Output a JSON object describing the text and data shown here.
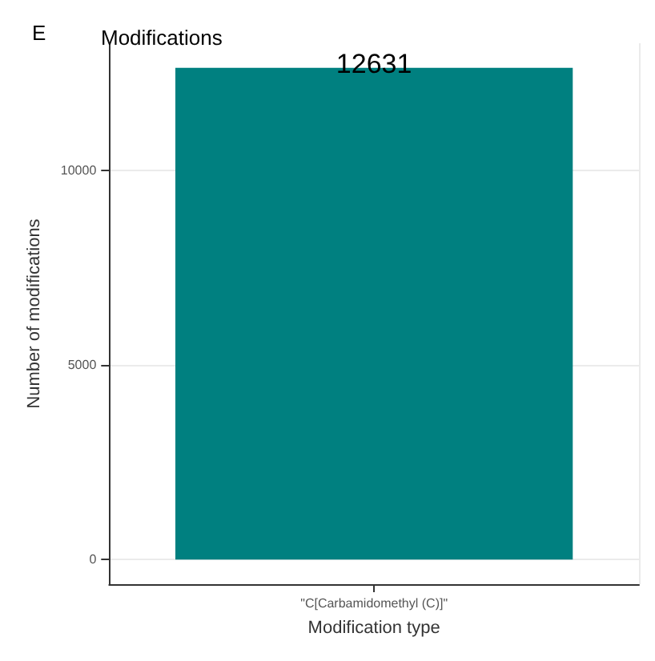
{
  "chart_data": {
    "type": "bar",
    "title": "Modifications",
    "xlabel": "Modification type",
    "ylabel": "Number of modifications",
    "annotations": [
      "E"
    ],
    "categories": [
      "\"C[Carbamidomethyl (C)]\""
    ],
    "values": [
      12631
    ],
    "color": "#008080",
    "ylim": [
      -632,
      13263
    ],
    "yticks": [
      0,
      5000,
      10000
    ],
    "grid": true,
    "data_labels": true
  }
}
